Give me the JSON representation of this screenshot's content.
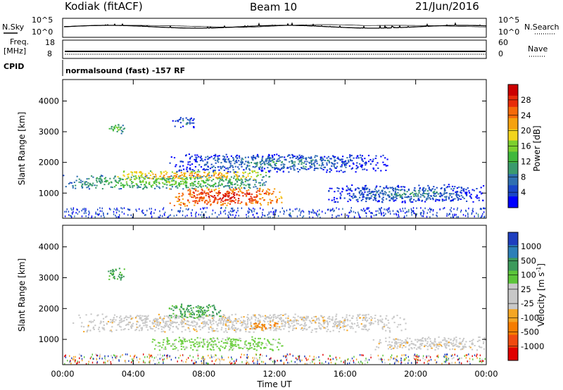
{
  "header": {
    "station": "Kodiak (fitACF)",
    "beam": "Beam 10",
    "date": "21/Jun/2016"
  },
  "top_panels": {
    "nsky_label": "N.Sky",
    "nsearch_label": "N.Search",
    "noise_tick_top": "10^5",
    "noise_tick_bottom": "10^0",
    "freq_label": "Freq.",
    "freq_unit": "[MHz]",
    "freq_ticks": [
      "18",
      "8"
    ],
    "nave_label": "Nave",
    "nave_ticks": [
      "60",
      "0"
    ],
    "cpid_label": "CPID",
    "cpid_text": "normalsound (fast) -157 RF"
  },
  "chart_data": [
    {
      "type": "heatmap",
      "panel": "power",
      "ylabel": "Slant Range [km]",
      "xlabel": "",
      "ylim": [
        180,
        4700
      ],
      "yticks": [
        "1000",
        "2000",
        "3000",
        "4000"
      ],
      "xlim_hours": [
        0,
        24
      ],
      "colorbar": {
        "label": "Power [dB]",
        "ticks": [
          "4",
          "8",
          "12",
          "16",
          "20",
          "24",
          "28"
        ],
        "range": [
          0,
          32
        ],
        "colors": [
          "#0000ff",
          "#1a46c8",
          "#2f6fb0",
          "#3a9a6e",
          "#3fb83c",
          "#7ccf2e",
          "#f2d41c",
          "#f5a20f",
          "#f56a0a",
          "#e82c0a",
          "#cc0000"
        ]
      },
      "echo_bands": [
        {
          "t0": 0.0,
          "t1": 11.8,
          "r0": 1150,
          "r1": 1600,
          "intensity": "moderate"
        },
        {
          "t0": 3.0,
          "t1": 11.5,
          "r0": 1450,
          "r1": 1750,
          "intensity": "high"
        },
        {
          "t0": 6.0,
          "t1": 12.5,
          "r0": 600,
          "r1": 1200,
          "intensity": "very high"
        },
        {
          "t0": 6.0,
          "t1": 18.5,
          "r0": 1700,
          "r1": 2300,
          "intensity": "low"
        },
        {
          "t0": 2.5,
          "t1": 3.5,
          "r0": 2950,
          "r1": 3300,
          "intensity": "moderate"
        },
        {
          "t0": 6.2,
          "t1": 7.5,
          "r0": 3150,
          "r1": 3500,
          "intensity": "low"
        },
        {
          "t0": 15.0,
          "t1": 24.0,
          "r0": 700,
          "r1": 1300,
          "intensity": "low"
        }
      ]
    },
    {
      "type": "heatmap",
      "panel": "velocity",
      "ylabel": "Slant Range [km]",
      "xlabel": "Time UT",
      "ylim": [
        180,
        4700
      ],
      "yticks": [
        "1000",
        "2000",
        "3000",
        "4000"
      ],
      "xticks": [
        "00:00",
        "04:00",
        "08:00",
        "12:00",
        "16:00",
        "20:00",
        "00:00"
      ],
      "xlim_hours": [
        0,
        24
      ],
      "colorbar": {
        "label": "Velocity [m s^-1]",
        "ticks": [
          "1000",
          "500",
          "100",
          "25",
          "-25",
          "-100",
          "-500",
          "-1000"
        ],
        "colors": [
          "#1f3fbf",
          "#2c7fb8",
          "#3c9a5c",
          "#5cc53a",
          "#c8c8c8",
          "#c8c8c8",
          "#f5a623",
          "#f57c00",
          "#f04a10",
          "#e00000"
        ]
      },
      "echo_bands": [
        {
          "t0": 0.5,
          "t1": 19.5,
          "r0": 1250,
          "r1": 1850,
          "velocity": "~0 (ground scatter)"
        },
        {
          "t0": 5.0,
          "t1": 12.5,
          "r0": 650,
          "r1": 1100,
          "velocity": "25 to 100"
        },
        {
          "t0": 6.0,
          "t1": 9.0,
          "r0": 1700,
          "r1": 2200,
          "velocity": "100"
        },
        {
          "t0": 10.5,
          "t1": 12.3,
          "r0": 1350,
          "r1": 1600,
          "velocity": "-100 to -500"
        },
        {
          "t0": 17.5,
          "t1": 24.0,
          "r0": 650,
          "r1": 1100,
          "velocity": "~0 (ground scatter)"
        },
        {
          "t0": 2.5,
          "t1": 3.5,
          "r0": 2950,
          "r1": 3350,
          "velocity": "100"
        }
      ]
    }
  ]
}
